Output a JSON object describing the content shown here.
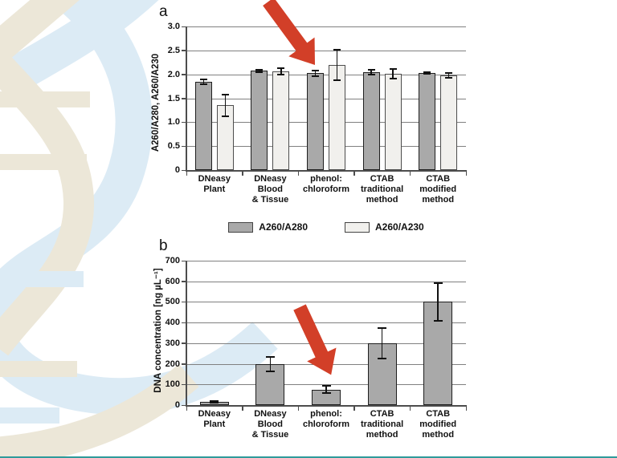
{
  "figure": {
    "panel_a_label": "a",
    "panel_b_label": "b",
    "arrow_color": "#d23f28",
    "background": {
      "watermark": "dna-double-helix",
      "watermark_blue": "#dcebf5",
      "watermark_beige": "#ece7d8",
      "bottom_bar_color": "#2f9b9b"
    },
    "annotations": [
      {
        "panel": "a",
        "type": "red-arrow",
        "points_at": "phenol:chloroform bars"
      },
      {
        "panel": "b",
        "type": "red-arrow",
        "points_at": "phenol:chloroform bar"
      }
    ]
  },
  "chart_data": [
    {
      "type": "bar",
      "panel": "a",
      "title": "",
      "xlabel": "",
      "ylabel": "A260/A280, A260/A230",
      "ylim": [
        0,
        3.0
      ],
      "ytick_step": 0.5,
      "yticks": [
        "3.0",
        "2.5",
        "2.0",
        "1.5",
        "1.0",
        "0.5",
        "0"
      ],
      "grid": true,
      "categories": [
        [
          "DNeasy",
          "Plant"
        ],
        [
          "DNeasy",
          "Blood",
          "& Tissue"
        ],
        [
          "phenol:",
          "chloroform"
        ],
        [
          "CTAB",
          "traditional",
          "method"
        ],
        [
          "CTAB",
          "modified",
          "method"
        ]
      ],
      "series": [
        {
          "name": "A260/A280",
          "fill": "#a9a9a9",
          "values": [
            1.85,
            2.07,
            2.02,
            2.05,
            2.03
          ],
          "errors": [
            0.05,
            0.02,
            0.06,
            0.05,
            0.02
          ]
        },
        {
          "name": "A260/A230",
          "fill": "#f1f0ed",
          "values": [
            1.35,
            2.06,
            2.2,
            2.01,
            1.97
          ],
          "errors": [
            0.23,
            0.07,
            0.32,
            0.1,
            0.05
          ]
        }
      ],
      "legend": {
        "position": "bottom",
        "items": [
          {
            "label": "A260/A280",
            "fill": "#a9a9a9"
          },
          {
            "label": "A260/A230",
            "fill": "#f1f0ed"
          }
        ]
      }
    },
    {
      "type": "bar",
      "panel": "b",
      "title": "",
      "xlabel": "",
      "ylabel": "DNA concentration [ng µL⁻¹]",
      "ylim": [
        0,
        700
      ],
      "ytick_step": 100,
      "yticks": [
        "700",
        "600",
        "500",
        "400",
        "300",
        "200",
        "100",
        "0"
      ],
      "grid": true,
      "categories": [
        [
          "DNeasy",
          "Plant"
        ],
        [
          "DNeasy",
          "Blood",
          "& Tissue"
        ],
        [
          "phenol:",
          "chloroform"
        ],
        [
          "CTAB",
          "traditional",
          "method"
        ],
        [
          "CTAB",
          "modified",
          "method"
        ]
      ],
      "series": [
        {
          "name": "DNA concentration",
          "fill": "#a9a9a9",
          "values": [
            15,
            200,
            75,
            300,
            500
          ],
          "errors": [
            5,
            35,
            18,
            75,
            90
          ]
        }
      ],
      "legend": {
        "position": "none",
        "items": []
      }
    }
  ]
}
